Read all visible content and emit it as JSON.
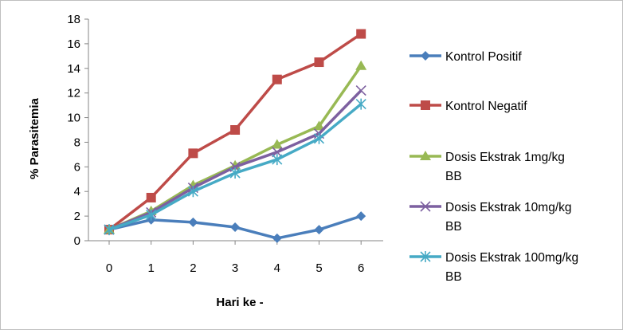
{
  "chart_data": {
    "type": "line",
    "title": "",
    "xlabel": "Hari ke -",
    "ylabel": "% Parasitemia",
    "x": [
      0,
      1,
      2,
      3,
      4,
      5,
      6
    ],
    "ylim": [
      0,
      18
    ],
    "yticks": [
      0,
      2,
      4,
      6,
      8,
      10,
      12,
      14,
      16,
      18
    ],
    "grid": "none",
    "legend_position": "right",
    "series": [
      {
        "name": "Kontrol Positif",
        "legend_lines": [
          "Kontrol Positif"
        ],
        "color": "#4a7ebb",
        "marker": "diamond",
        "values": [
          0.9,
          1.7,
          1.5,
          1.1,
          0.2,
          0.9,
          2.0
        ]
      },
      {
        "name": "Kontrol Negatif",
        "legend_lines": [
          "Kontrol Negatif"
        ],
        "color": "#be4b48",
        "marker": "square",
        "values": [
          0.9,
          3.5,
          7.1,
          9.0,
          13.1,
          14.5,
          16.8
        ]
      },
      {
        "name": "Dosis Ekstrak 1mg/kg BB",
        "legend_lines": [
          "Dosis Ekstrak 1mg/kg",
          "BB"
        ],
        "color": "#98b954",
        "marker": "triangle",
        "values": [
          0.9,
          2.4,
          4.5,
          6.1,
          7.8,
          9.3,
          14.2
        ]
      },
      {
        "name": "Dosis Ekstrak 10mg/kg BB",
        "legend_lines": [
          "Dosis Ekstrak 10mg/kg",
          "BB"
        ],
        "color": "#7d60a0",
        "marker": "x",
        "values": [
          0.9,
          2.3,
          4.3,
          6.0,
          7.2,
          8.7,
          12.2
        ]
      },
      {
        "name": "Dosis Ekstrak 100mg/kg BB",
        "legend_lines": [
          "Dosis Ekstrak 100mg/kg",
          "BB"
        ],
        "color": "#46aac5",
        "marker": "star",
        "values": [
          0.9,
          2.1,
          4.0,
          5.5,
          6.6,
          8.3,
          11.1
        ]
      }
    ]
  }
}
